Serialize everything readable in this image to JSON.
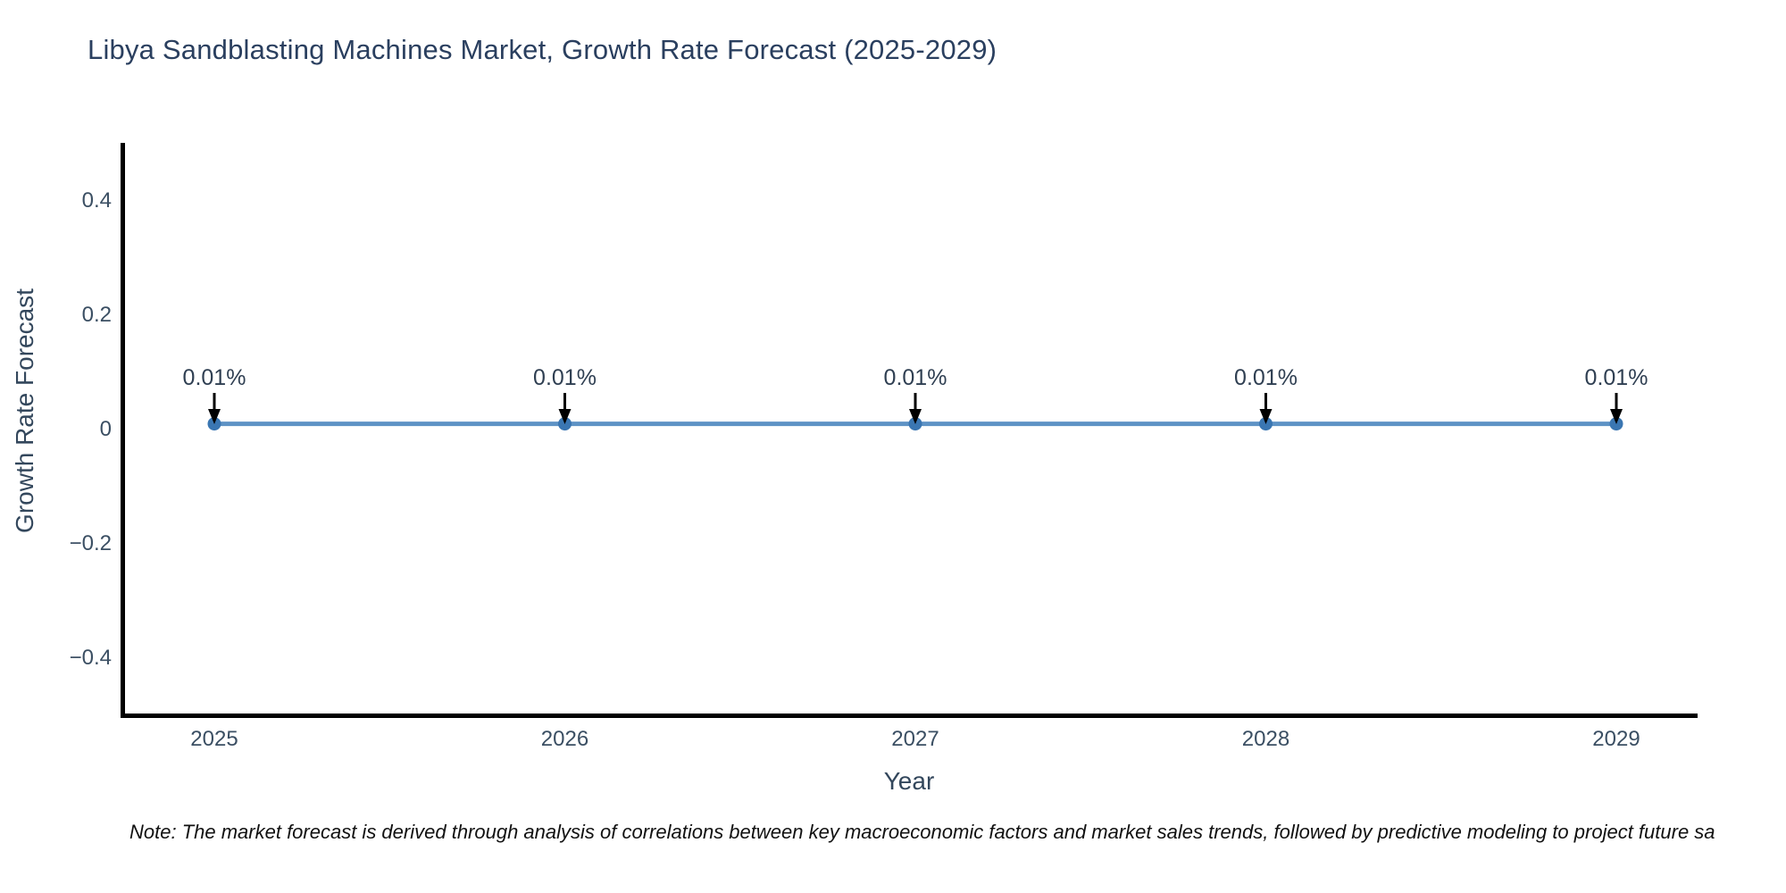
{
  "title": {
    "text": "Libya Sandblasting Machines Market, Growth Rate Forecast (2025-2029)"
  },
  "note": {
    "text": "Note: The market forecast is derived through analysis of correlations between key macroeconomic factors and market sales trends, followed by predictive modeling to project future sa"
  },
  "chart_data": {
    "type": "line",
    "title": "Libya Sandblasting Machines Market, Growth Rate Forecast (2025-2029)",
    "x": [
      "2025",
      "2026",
      "2027",
      "2028",
      "2029"
    ],
    "values": [
      0.01,
      0.01,
      0.01,
      0.01,
      0.01
    ],
    "point_labels": [
      "0.01%",
      "0.01%",
      "0.01%",
      "0.01%",
      "0.01%"
    ],
    "xlabel": "Year",
    "ylabel": "Growth Rate Forecast",
    "ylim": [
      -0.5,
      0.5
    ],
    "yticks": [
      0.4,
      0.2,
      0,
      -0.2,
      -0.4
    ],
    "ytick_labels": [
      "0.4",
      "0.2",
      "0",
      "−0.2",
      "−0.4"
    ],
    "grid": false,
    "legend": "none",
    "annotations_have_arrows": true,
    "colors": {
      "line": "#5e93c5",
      "marker": "#3a76b2",
      "axis": "#000000",
      "tick_text": "#3b4f63",
      "axis_label_text": "#33475c",
      "annotation_text": "#2f3f52",
      "annotation_arrow": "#000000",
      "title_text": "#2a3f5f",
      "note_text": "#111111"
    }
  }
}
